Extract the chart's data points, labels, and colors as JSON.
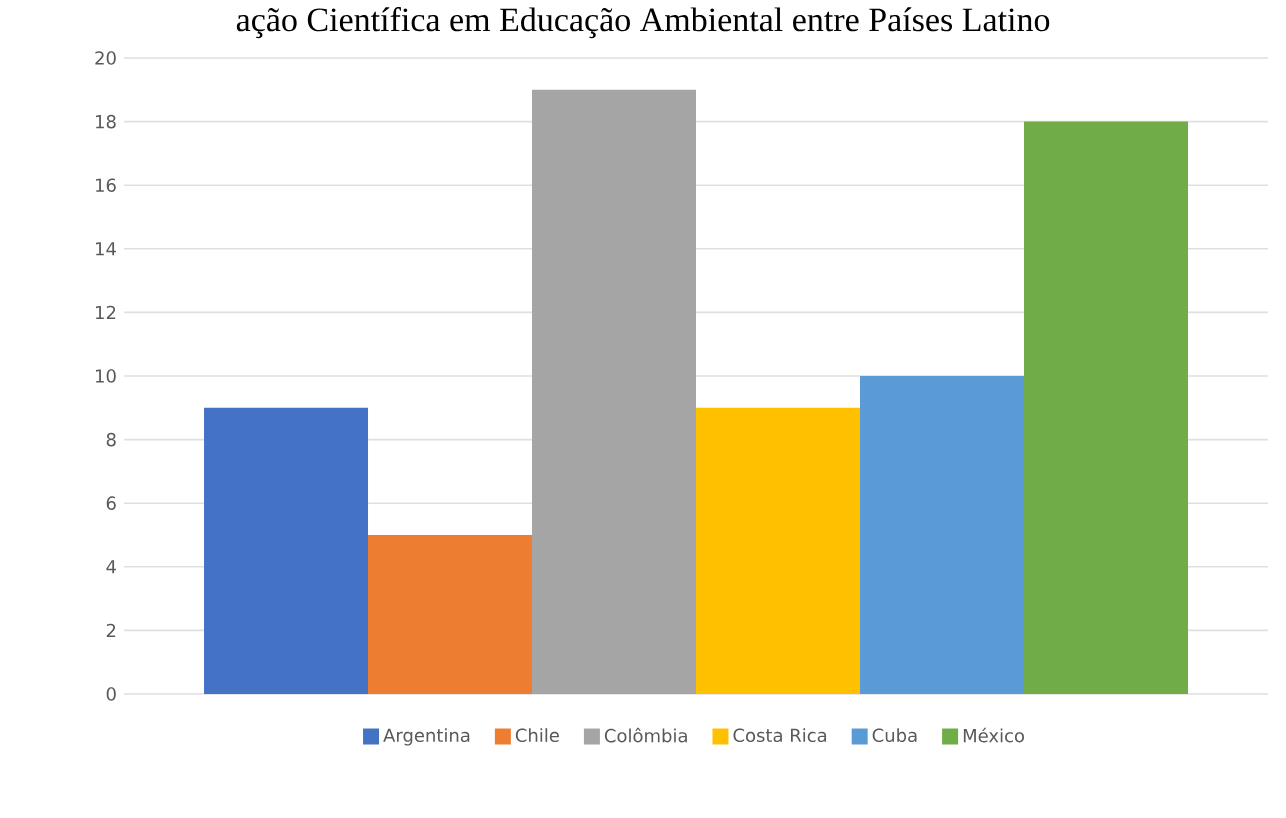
{
  "chart_data": {
    "type": "bar",
    "title": "ação Científica em Educação Ambiental entre Países Latino",
    "categories": [
      null
    ],
    "series": [
      {
        "name": "Argentina",
        "color": "#4472c4",
        "values": [
          9
        ]
      },
      {
        "name": "Chile",
        "color": "#ed7d31",
        "values": [
          5
        ]
      },
      {
        "name": "Colômbia",
        "color": "#a5a5a5",
        "values": [
          19
        ]
      },
      {
        "name": "Costa Rica",
        "color": "#ffc000",
        "values": [
          9
        ]
      },
      {
        "name": "Cuba",
        "color": "#5b9bd5",
        "values": [
          10
        ]
      },
      {
        "name": "México",
        "color": "#70ad47",
        "values": [
          18
        ]
      }
    ],
    "ylim": [
      0,
      20
    ],
    "yticks": [
      0,
      2,
      4,
      6,
      8,
      10,
      12,
      14,
      16,
      18,
      20
    ],
    "grid": "y",
    "legend": "bottom"
  }
}
